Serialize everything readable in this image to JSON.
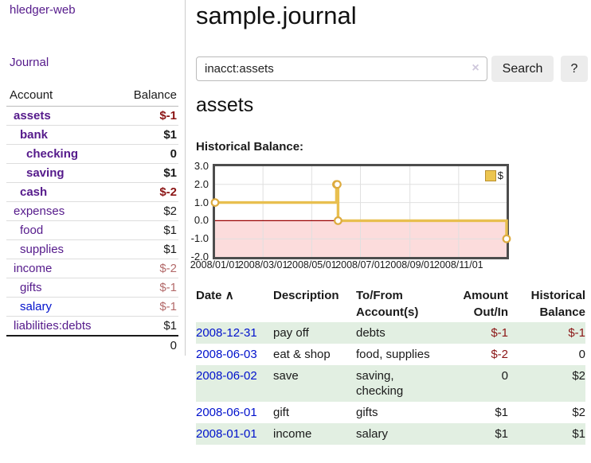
{
  "colors": {
    "accent_purple": "#551a8b",
    "link_blue": "#0011cc",
    "negative_strong": "#8b1515",
    "negative_soft": "#b36a6a",
    "row_stripe_green": "#e2efe2",
    "chart_line_gold": "#e8bf4f",
    "chart_negative_bg": "#fcdcdc",
    "chart_zero_line": "#990000"
  },
  "sidebar": {
    "brand": "hledger-web",
    "nav": {
      "journal": "Journal"
    },
    "table": {
      "headers": {
        "account": "Account",
        "balance": "Balance"
      },
      "rows": [
        {
          "account": "assets",
          "balance": "$-1",
          "level": 1,
          "bold": true
        },
        {
          "account": "bank",
          "balance": "$1",
          "level": 2,
          "bold": true
        },
        {
          "account": "checking",
          "balance": "0",
          "level": 3,
          "bold": true
        },
        {
          "account": "saving",
          "balance": "$1",
          "level": 3,
          "bold": true
        },
        {
          "account": "cash",
          "balance": "$-2",
          "level": 2,
          "bold": true
        },
        {
          "account": "expenses",
          "balance": "$2",
          "level": 1,
          "bold": false
        },
        {
          "account": "food",
          "balance": "$1",
          "level": 2,
          "bold": false
        },
        {
          "account": "supplies",
          "balance": "$1",
          "level": 2,
          "bold": false
        },
        {
          "account": "income",
          "balance": "$-2",
          "level": 1,
          "bold": false
        },
        {
          "account": "gifts",
          "balance": "$-1",
          "level": 2,
          "bold": false
        },
        {
          "account": "salary",
          "balance": "$-1",
          "level": 2,
          "bold": false,
          "link_style": "blue"
        },
        {
          "account": "liabilities:debts",
          "balance": "$1",
          "level": 1,
          "bold": false
        }
      ],
      "total": "0"
    }
  },
  "main": {
    "title": "sample.journal",
    "search": {
      "value": "inacct:assets",
      "clear_icon": "×",
      "button_label": "Search",
      "help_label": "?"
    },
    "account_heading": "assets",
    "chart_heading": "Historical Balance:"
  },
  "chart_data": {
    "type": "line",
    "title": "Historical Balance:",
    "step": "after",
    "x_start": "2008-01-01",
    "x_end": "2008-12-31",
    "x_tick_dates": [
      "2008-01-01",
      "2008-03-01",
      "2008-05-01",
      "2008-07-01",
      "2008-09-01",
      "2008-11-01"
    ],
    "x_tick_labels": [
      "2008/01/01",
      "2008/03/01",
      "2008/05/01",
      "2008/07/01",
      "2008/09/01",
      "2008/11/01"
    ],
    "y_ticks": [
      "3.0",
      "2.0",
      "1.0",
      "0.0",
      "-1.0",
      "-2.0"
    ],
    "ylim": [
      -2,
      3
    ],
    "grid": true,
    "legend_position": "top-right",
    "series": [
      {
        "name": "$",
        "color": "#e8bf4f",
        "marker": "circle",
        "points": [
          {
            "x": "2008-01-01",
            "y": 1
          },
          {
            "x": "2008-06-01",
            "y": 2
          },
          {
            "x": "2008-06-02",
            "y": 2
          },
          {
            "x": "2008-06-03",
            "y": 0
          },
          {
            "x": "2008-12-31",
            "y": -1
          }
        ]
      }
    ],
    "negative_fill": "#fcdcdc",
    "zero_line_color": "#990000"
  },
  "register": {
    "headers": {
      "date": "Date",
      "sort_icon": "∧",
      "description": "Description",
      "tofrom": "To/From Account(s)",
      "amount": "Amount Out/In",
      "balance": "Historical Balance"
    },
    "rows": [
      {
        "date": "2008-12-31",
        "description": "pay off",
        "tofrom": "debts",
        "amount": "$-1",
        "balance": "$-1"
      },
      {
        "date": "2008-06-03",
        "description": "eat & shop",
        "tofrom": "food, supplies",
        "amount": "$-2",
        "balance": "0"
      },
      {
        "date": "2008-06-02",
        "description": "save",
        "tofrom": "saving, checking",
        "amount": "0",
        "balance": "$2"
      },
      {
        "date": "2008-06-01",
        "description": "gift",
        "tofrom": "gifts",
        "amount": "$1",
        "balance": "$2"
      },
      {
        "date": "2008-01-01",
        "description": "income",
        "tofrom": "salary",
        "amount": "$1",
        "balance": "$1"
      }
    ]
  }
}
